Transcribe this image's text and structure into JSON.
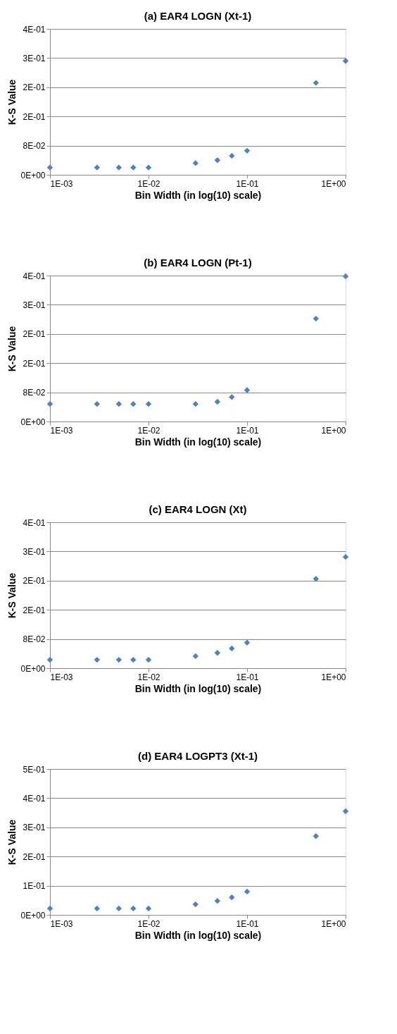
{
  "chart_data": [
    {
      "type": "scatter",
      "title": "(a) EAR4 LOGN (Xt-1)",
      "xlabel": "Bin Width (in log(10) scale)",
      "ylabel": "K-S Value",
      "log": "x",
      "grid": "y",
      "marker": "diamond",
      "x": [
        0.001,
        0.003,
        0.005,
        0.007,
        0.01,
        0.03,
        0.05,
        0.07,
        0.1,
        0.5,
        1
      ],
      "series": [
        {
          "color": "#4f81bd",
          "values": [
            0.02,
            0.02,
            0.02,
            0.02,
            0.02,
            0.032,
            0.04,
            0.052,
            0.066,
            0.252,
            0.312
          ]
        }
      ],
      "xlim": [
        0.001,
        1
      ],
      "xticks": [
        {
          "value": 0.001,
          "label": "1E-03"
        },
        {
          "value": 0.01,
          "label": "1E-02"
        },
        {
          "value": 0.1,
          "label": "1E-01"
        },
        {
          "value": 1,
          "label": "1E+00"
        }
      ],
      "ylim": [
        0,
        0.4
      ],
      "yticks": [
        {
          "value": 0,
          "label": "0E+00"
        },
        {
          "value": 0.08,
          "label": "8E-02"
        },
        {
          "value": 0.16,
          "label": "2E-01"
        },
        {
          "value": 0.24,
          "label": "2E-01"
        },
        {
          "value": 0.32,
          "label": "3E-01"
        },
        {
          "value": 0.4,
          "label": "4E-01"
        }
      ]
    },
    {
      "type": "scatter",
      "title": "(b) EAR4 LOGN (Pt-1)",
      "xlabel": "Bin Width (in log(10) scale)",
      "ylabel": "K-S Value",
      "log": "x",
      "grid": "y",
      "marker": "diamond",
      "x": [
        0.001,
        0.003,
        0.005,
        0.007,
        0.01,
        0.03,
        0.05,
        0.07,
        0.1,
        0.5,
        1
      ],
      "series": [
        {
          "color": "#4f81bd",
          "values": [
            0.048,
            0.048,
            0.048,
            0.048,
            0.048,
            0.048,
            0.054,
            0.067,
            0.086,
            0.282,
            0.398
          ]
        }
      ],
      "xlim": [
        0.001,
        1
      ],
      "xticks": [
        {
          "value": 0.001,
          "label": "1E-03"
        },
        {
          "value": 0.01,
          "label": "1E-02"
        },
        {
          "value": 0.1,
          "label": "1E-01"
        },
        {
          "value": 1,
          "label": "1E+00"
        }
      ],
      "ylim": [
        0,
        0.4
      ],
      "yticks": [
        {
          "value": 0,
          "label": "0E+00"
        },
        {
          "value": 0.08,
          "label": "8E-02"
        },
        {
          "value": 0.16,
          "label": "2E-01"
        },
        {
          "value": 0.24,
          "label": "2E-01"
        },
        {
          "value": 0.32,
          "label": "3E-01"
        },
        {
          "value": 0.4,
          "label": "4E-01"
        }
      ]
    },
    {
      "type": "scatter",
      "title": "(c) EAR4 LOGN (Xt)",
      "xlabel": "Bin Width (in log(10) scale)",
      "ylabel": "K-S Value",
      "log": "x",
      "grid": "y",
      "marker": "diamond",
      "x": [
        0.001,
        0.003,
        0.005,
        0.007,
        0.01,
        0.03,
        0.05,
        0.07,
        0.1,
        0.5,
        1
      ],
      "series": [
        {
          "color": "#4f81bd",
          "values": [
            0.023,
            0.023,
            0.023,
            0.023,
            0.023,
            0.033,
            0.042,
            0.054,
            0.07,
            0.245,
            0.305
          ]
        }
      ],
      "xlim": [
        0.001,
        1
      ],
      "xticks": [
        {
          "value": 0.001,
          "label": "1E-03"
        },
        {
          "value": 0.01,
          "label": "1E-02"
        },
        {
          "value": 0.1,
          "label": "1E-01"
        },
        {
          "value": 1,
          "label": "1E+00"
        }
      ],
      "ylim": [
        0,
        0.4
      ],
      "yticks": [
        {
          "value": 0,
          "label": "0E+00"
        },
        {
          "value": 0.08,
          "label": "8E-02"
        },
        {
          "value": 0.16,
          "label": "2E-01"
        },
        {
          "value": 0.24,
          "label": "2E-01"
        },
        {
          "value": 0.32,
          "label": "3E-01"
        },
        {
          "value": 0.4,
          "label": "4E-01"
        }
      ]
    },
    {
      "type": "scatter",
      "title": "(d) EAR4 LOGPT3 (Xt-1)",
      "xlabel": "Bin Width (in log(10) scale)",
      "ylabel": "K-S Value",
      "log": "x",
      "grid": "y",
      "marker": "diamond",
      "x": [
        0.001,
        0.003,
        0.005,
        0.007,
        0.01,
        0.03,
        0.05,
        0.07,
        0.1,
        0.5,
        1
      ],
      "series": [
        {
          "color": "#4f81bd",
          "values": [
            0.022,
            0.022,
            0.022,
            0.022,
            0.022,
            0.036,
            0.048,
            0.06,
            0.08,
            0.27,
            0.355
          ]
        }
      ],
      "xlim": [
        0.001,
        1
      ],
      "xticks": [
        {
          "value": 0.001,
          "label": "1E-03"
        },
        {
          "value": 0.01,
          "label": "1E-02"
        },
        {
          "value": 0.1,
          "label": "1E-01"
        },
        {
          "value": 1,
          "label": "1E+00"
        }
      ],
      "ylim": [
        0,
        0.5
      ],
      "yticks": [
        {
          "value": 0,
          "label": "0E+00"
        },
        {
          "value": 0.1,
          "label": "1E-01"
        },
        {
          "value": 0.2,
          "label": "2E-01"
        },
        {
          "value": 0.3,
          "label": "3E-01"
        },
        {
          "value": 0.4,
          "label": "4E-01"
        },
        {
          "value": 0.5,
          "label": "5E-01"
        }
      ]
    }
  ]
}
